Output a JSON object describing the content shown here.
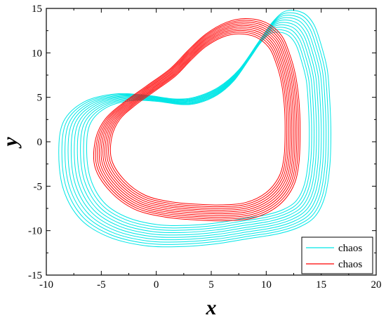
{
  "chart_data": {
    "type": "line",
    "title": "",
    "xlabel": "x",
    "ylabel": "y",
    "xlim": [
      -10,
      20
    ],
    "ylim": [
      -15,
      15
    ],
    "xticks": [
      -10,
      -5,
      0,
      5,
      10,
      15,
      20
    ],
    "yticks": [
      -15,
      -10,
      -5,
      0,
      5,
      10,
      15
    ],
    "grid": false,
    "legend_position": "bottom-right",
    "series": [
      {
        "name": "chaos",
        "color": "#00e6e6",
        "band_width": 1.2,
        "strands": 10,
        "x": [
          11.2,
          12.6,
          13.5,
          14.1,
          14.6,
          14.8,
          14.9,
          14.8,
          14.4,
          13.6,
          12.3,
          10.5,
          8.0,
          5.5,
          2.5,
          -0.5,
          -3.5,
          -5.8,
          -7.2,
          -7.6,
          -7.2,
          -5.5,
          -3.0,
          -0.5,
          2.0,
          3.7,
          5.6,
          7.3,
          8.9,
          10.1,
          11.2
        ],
        "y": [
          13.5,
          13.3,
          12.1,
          10.0,
          7.5,
          4.5,
          1.0,
          -2.5,
          -5.5,
          -7.5,
          -8.6,
          -9.3,
          -9.8,
          -10.3,
          -10.6,
          -10.5,
          -9.6,
          -7.8,
          -4.8,
          -1.0,
          2.2,
          4.2,
          5.0,
          4.9,
          4.5,
          4.7,
          5.7,
          7.5,
          10.3,
          12.4,
          13.5
        ]
      },
      {
        "name": "chaos",
        "color": "#ff0000",
        "band_width": 1.0,
        "strands": 10,
        "x": [
          7.8,
          9.5,
          10.8,
          11.5,
          12.0,
          12.3,
          12.4,
          12.3,
          11.8,
          10.5,
          8.5,
          6.0,
          3.5,
          1.0,
          -1.5,
          -3.5,
          -4.8,
          -4.8,
          -4.0,
          -2.5,
          -0.5,
          1.5,
          3.0,
          4.5,
          6.2,
          7.8
        ],
        "y": [
          13.0,
          12.6,
          11.3,
          9.4,
          7.2,
          4.5,
          1.5,
          -2.0,
          -4.5,
          -6.5,
          -7.7,
          -8.0,
          -7.9,
          -7.6,
          -6.8,
          -5.0,
          -2.5,
          0.3,
          2.5,
          4.2,
          6.0,
          7.8,
          9.7,
          11.4,
          12.6,
          13.0
        ]
      }
    ]
  }
}
